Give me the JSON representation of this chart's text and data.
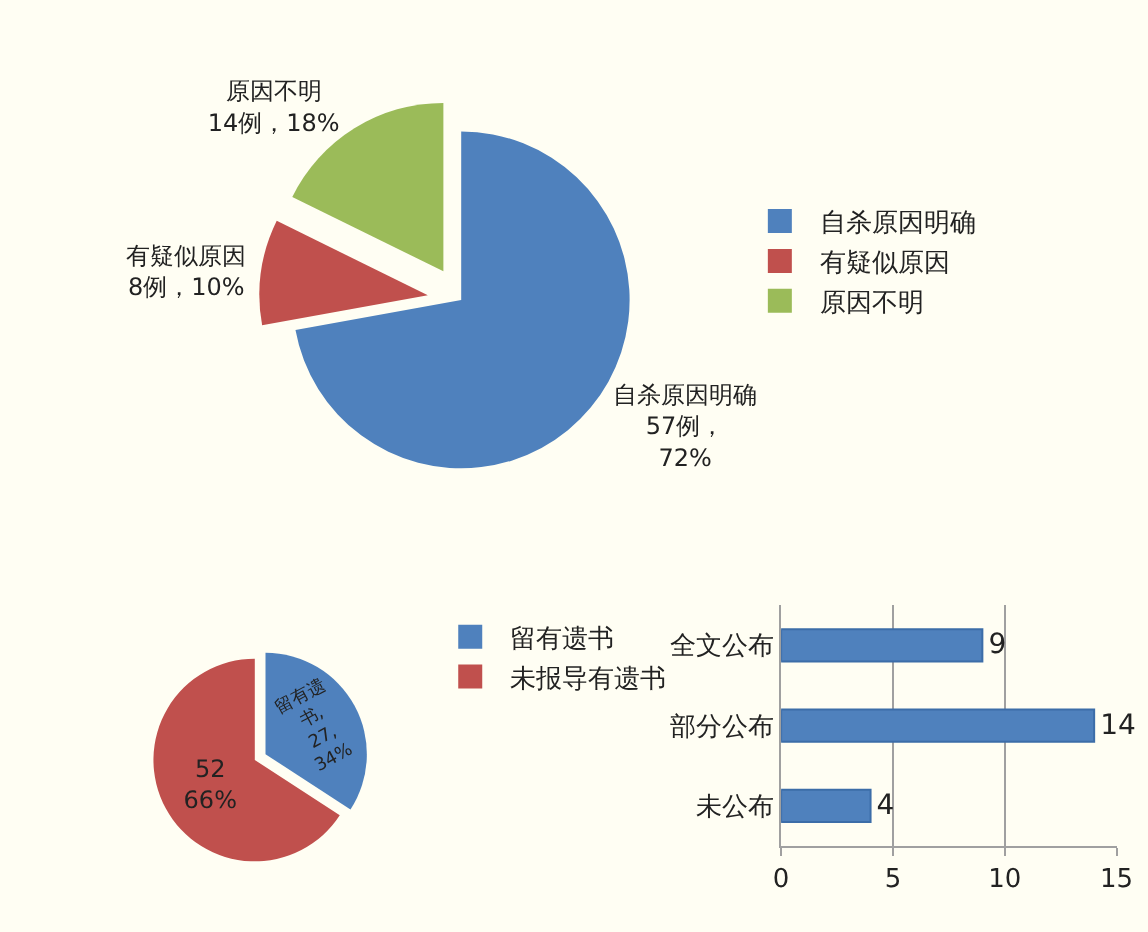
{
  "chart_data": [
    {
      "type": "pie",
      "categories": [
        "自杀原因明确",
        "有疑似原因",
        "原因不明"
      ],
      "values": [
        57,
        8,
        14
      ],
      "colors": [
        "#4f81bd",
        "#c0504d",
        "#9bbb59"
      ],
      "value_labels": [
        "57例，\n72%",
        "8例，10%",
        "14例，18%"
      ],
      "legend": "right"
    },
    {
      "type": "pie",
      "categories": [
        "留有遗书",
        "未报导有遗书"
      ],
      "values": [
        27,
        52
      ],
      "colors": [
        "#4f81bd",
        "#c0504d"
      ],
      "value_labels": [
        "留有遗\n书,\n27,\n34%",
        "52\n66%"
      ],
      "legend": "right"
    },
    {
      "type": "bar",
      "orientation": "horizontal",
      "categories": [
        "全文公布",
        "部分公布",
        "未公布"
      ],
      "values": [
        9,
        14,
        4
      ],
      "color": "#4f81bd",
      "xlim": [
        0,
        15
      ],
      "xticks": [
        0,
        5,
        10,
        15
      ],
      "grid": "x",
      "data_labels": true
    }
  ]
}
